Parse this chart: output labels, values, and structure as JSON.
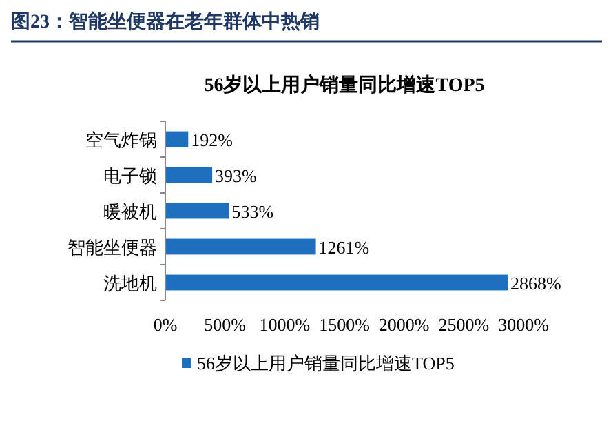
{
  "chart_data": {
    "type": "bar",
    "orientation": "horizontal",
    "title": "图23：智能坐便器在老年群体中热销",
    "subtitle": "56岁以上用户销量同比增速TOP5",
    "categories": [
      "空气炸锅",
      "电子锁",
      "暖被机",
      "智能坐便器",
      "洗地机"
    ],
    "series": [
      {
        "name": "56岁以上用户销量同比增速TOP5",
        "color": "#1f6fbf",
        "values": [
          192,
          393,
          533,
          1261,
          2868
        ],
        "value_labels": [
          "192%",
          "393%",
          "533%",
          "1261%",
          "2868%"
        ]
      }
    ],
    "xlim": [
      0,
      3000
    ],
    "xticks": [
      {
        "value": 0,
        "label": "0%"
      },
      {
        "value": 500,
        "label": "500%"
      },
      {
        "value": 1000,
        "label": "1000%"
      },
      {
        "value": 1500,
        "label": "1500%"
      },
      {
        "value": 2000,
        "label": "2000%"
      },
      {
        "value": 2500,
        "label": "2500%"
      },
      {
        "value": 3000,
        "label": "3000%"
      }
    ],
    "legend": "bottom"
  }
}
